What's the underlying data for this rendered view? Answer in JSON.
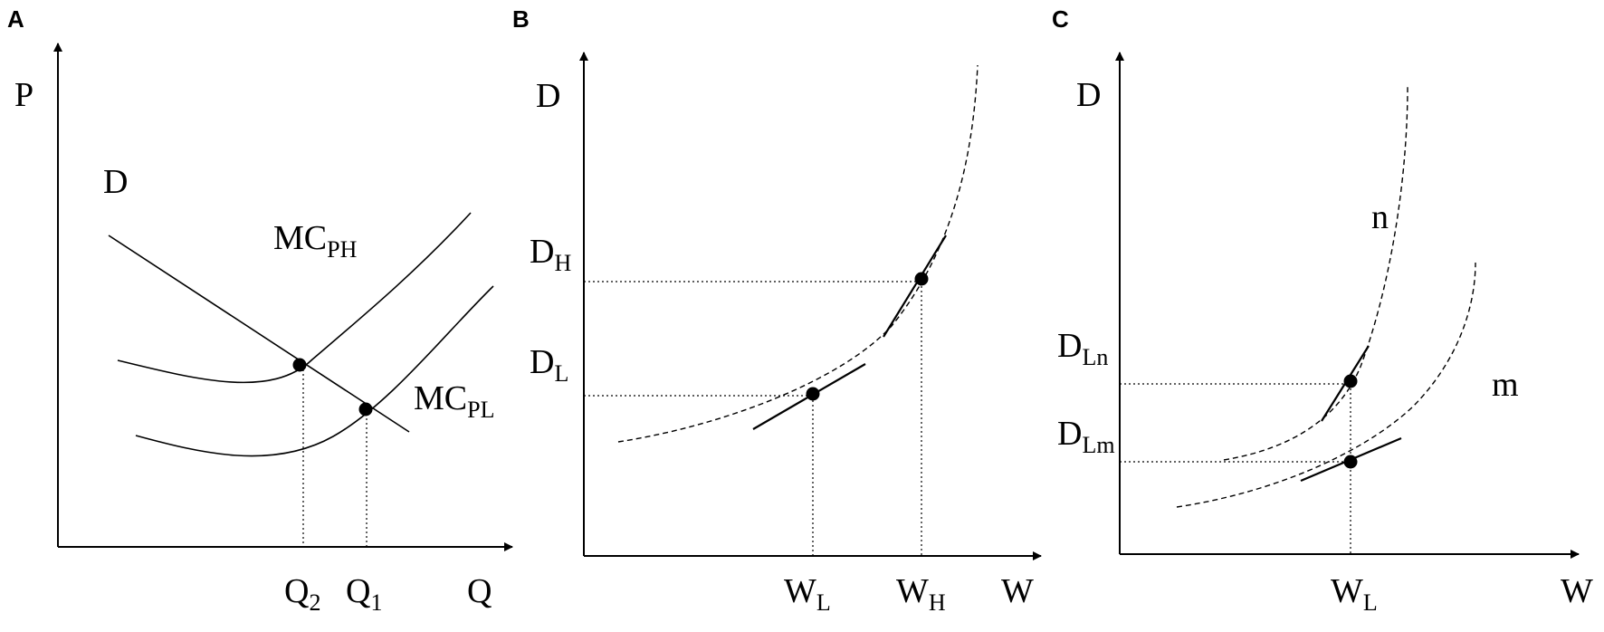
{
  "panels": [
    {
      "letter": "A",
      "y_axis": "P",
      "x_axis": "Q",
      "demand": "D",
      "mc_high": {
        "base": "MC",
        "sub": "PH"
      },
      "mc_low": {
        "base": "MC",
        "sub": "PL"
      },
      "q2": {
        "base": "Q",
        "sub": "2"
      },
      "q1": {
        "base": "Q",
        "sub": "1"
      }
    },
    {
      "letter": "B",
      "y_axis": "D",
      "x_axis": "W",
      "d_high": {
        "base": "D",
        "sub": "H"
      },
      "d_low": {
        "base": "D",
        "sub": "L"
      },
      "w_low": {
        "base": "W",
        "sub": "L"
      },
      "w_high": {
        "base": "W",
        "sub": "H"
      }
    },
    {
      "letter": "C",
      "y_axis": "D",
      "x_axis": "W",
      "curve_n": "n",
      "curve_m": "m",
      "d_ln": {
        "base": "D",
        "sub": "Ln"
      },
      "d_lm": {
        "base": "D",
        "sub": "Lm"
      },
      "w_low": {
        "base": "W",
        "sub": "L"
      }
    }
  ]
}
